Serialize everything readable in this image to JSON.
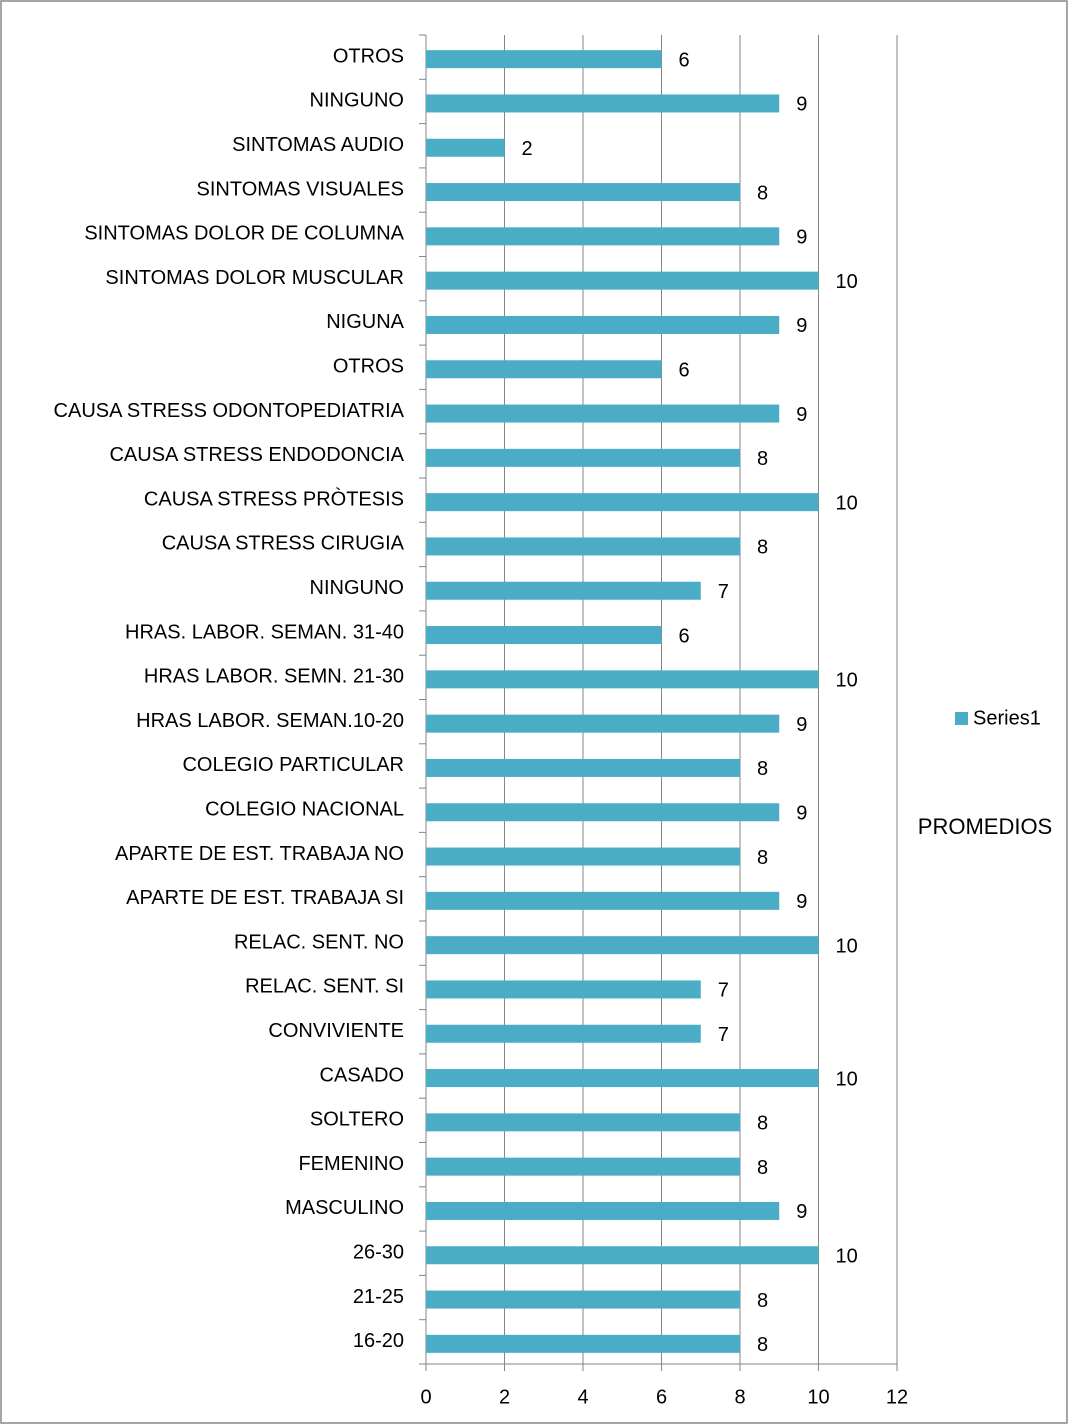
{
  "chart_data": {
    "type": "barh",
    "categories": [
      "16-20",
      "21-25",
      "26-30",
      "MASCULINO",
      "FEMENINO",
      "SOLTERO",
      "CASADO",
      "CONVIVIENTE",
      "RELAC. SENT. SI",
      "RELAC. SENT. NO",
      "APARTE DE EST. TRABAJA SI",
      "APARTE DE EST. TRABAJA NO",
      "COLEGIO NACIONAL",
      "COLEGIO PARTICULAR",
      "HRAS LABOR. SEMAN.10-20",
      "HRAS LABOR. SEMN. 21-30",
      "HRAS. LABOR. SEMAN. 31-40",
      "NINGUNO",
      "CAUSA STRESS CIRUGIA",
      "CAUSA STRESS PRÒTESIS",
      "CAUSA STRESS ENDODONCIA",
      "CAUSA STRESS ODONTOPEDIATRIA",
      "OTROS",
      "NIGUNA",
      "SINTOMAS DOLOR MUSCULAR",
      "SINTOMAS DOLOR  DE COLUMNA",
      "SINTOMAS VISUALES",
      "SINTOMAS AUDIO",
      "NINGUNO",
      "OTROS"
    ],
    "series": [
      {
        "name": "Series1",
        "color": "#4bacc6",
        "values": [
          8,
          8,
          10,
          9,
          8,
          8,
          10,
          7,
          7,
          10,
          9,
          8,
          9,
          8,
          9,
          10,
          6,
          7,
          8,
          10,
          8,
          9,
          6,
          9,
          10,
          9,
          8,
          2,
          9,
          6
        ]
      }
    ],
    "xlim": [
      0,
      12
    ],
    "xticks": [
      0,
      2,
      4,
      6,
      8,
      10,
      12
    ],
    "grid": true,
    "legend": "right",
    "annotation": "PROMEDIOS"
  }
}
